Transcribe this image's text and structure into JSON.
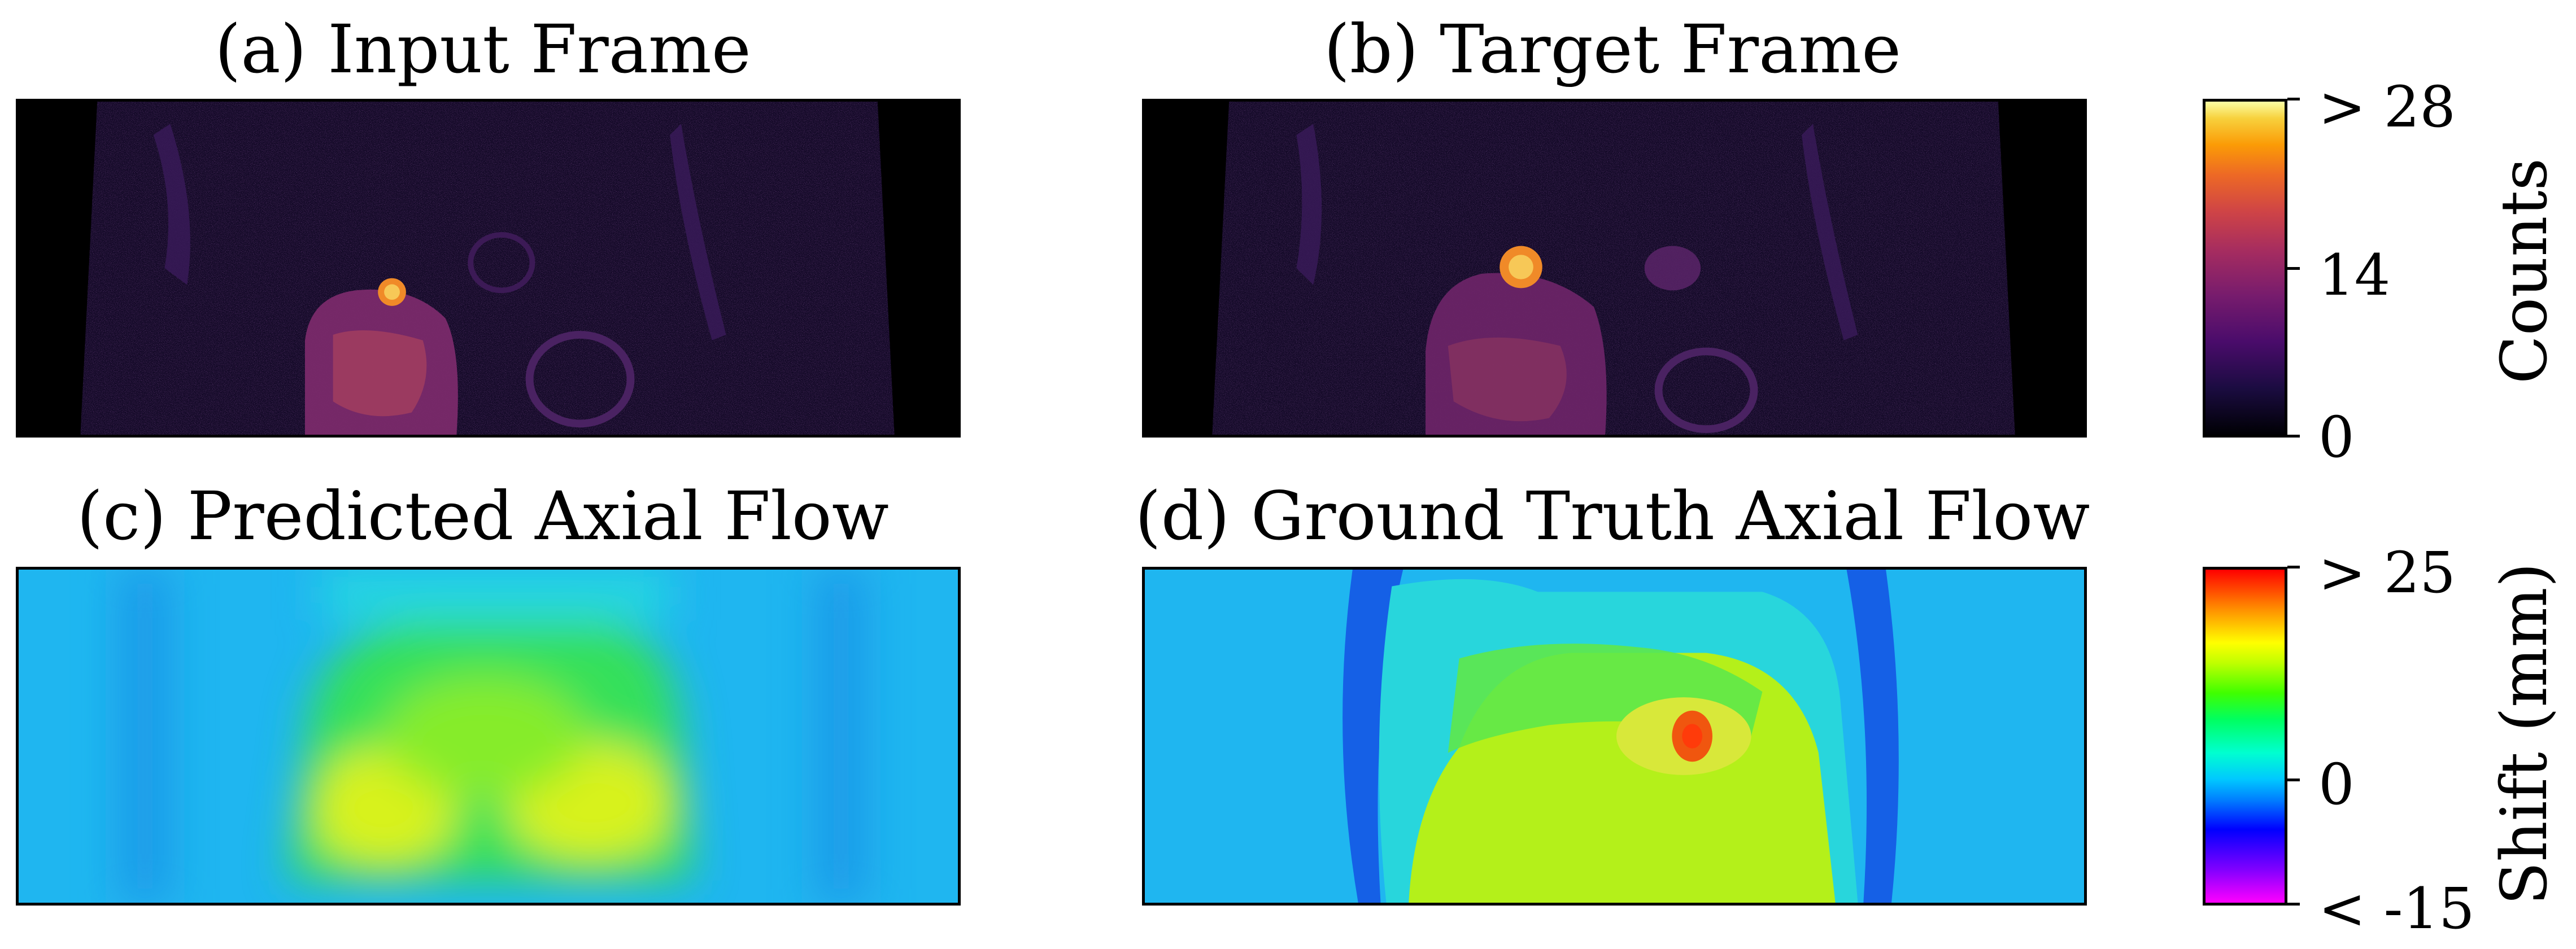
{
  "panels": {
    "a": {
      "title": "(a) Input Frame"
    },
    "b": {
      "title": "(b) Target Frame"
    },
    "c": {
      "title": "(c) Predicted Axial Flow"
    },
    "d": {
      "title": "(d) Ground Truth Axial Flow"
    }
  },
  "colorbars": {
    "counts": {
      "label": "Counts",
      "colormap": "inferno",
      "ticks": [
        "> 28",
        "14",
        "0"
      ]
    },
    "shift": {
      "label": "Shift (mm)",
      "colormap": "gist_rainbow-like (magenta to red)",
      "ticks": [
        "> 25",
        "0",
        "< -15"
      ]
    }
  },
  "colors": {
    "frame_background": "#000000",
    "flow_background": "#1fb6f0",
    "axis_frame": "#000000"
  }
}
